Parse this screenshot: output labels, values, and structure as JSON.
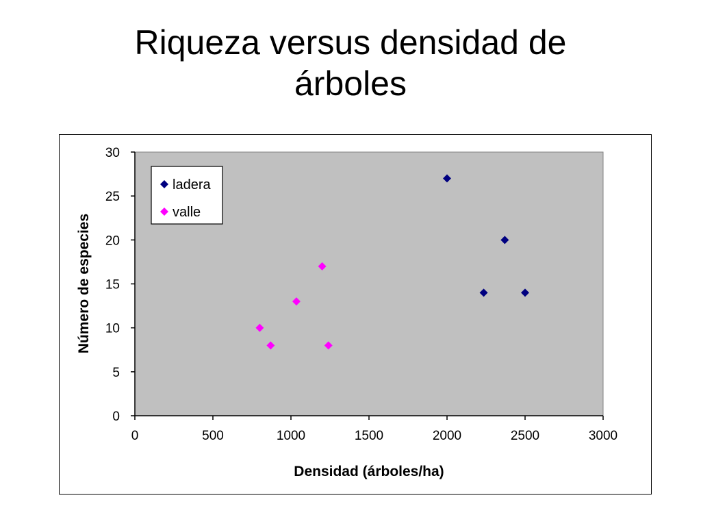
{
  "slide": {
    "title": "Riqueza versus densidad de\nárboles"
  },
  "colors": {
    "plot_background": "#c0c0c0",
    "ladera": "#000080",
    "valle": "#ff00ff"
  },
  "chart_data": {
    "type": "scatter",
    "title": "Riqueza versus densidad de árboles",
    "xlabel": "Densidad (árboles/ha)",
    "ylabel": "Número de especies",
    "xlim": [
      0,
      3000
    ],
    "ylim": [
      0,
      30
    ],
    "xticks": [
      0,
      500,
      1000,
      1500,
      2000,
      2500,
      3000
    ],
    "yticks": [
      0,
      5,
      10,
      15,
      20,
      25,
      30
    ],
    "grid": false,
    "legend_position": "top-left",
    "marker": "diamond",
    "series": [
      {
        "name": "ladera",
        "color": "#000080",
        "points": [
          {
            "x": 2000,
            "y": 27
          },
          {
            "x": 2370,
            "y": 20
          },
          {
            "x": 2235,
            "y": 14
          },
          {
            "x": 2500,
            "y": 14
          }
        ]
      },
      {
        "name": "valle",
        "color": "#ff00ff",
        "points": [
          {
            "x": 1200,
            "y": 17
          },
          {
            "x": 1035,
            "y": 13
          },
          {
            "x": 800,
            "y": 10
          },
          {
            "x": 870,
            "y": 8
          },
          {
            "x": 1240,
            "y": 8
          }
        ]
      }
    ]
  }
}
